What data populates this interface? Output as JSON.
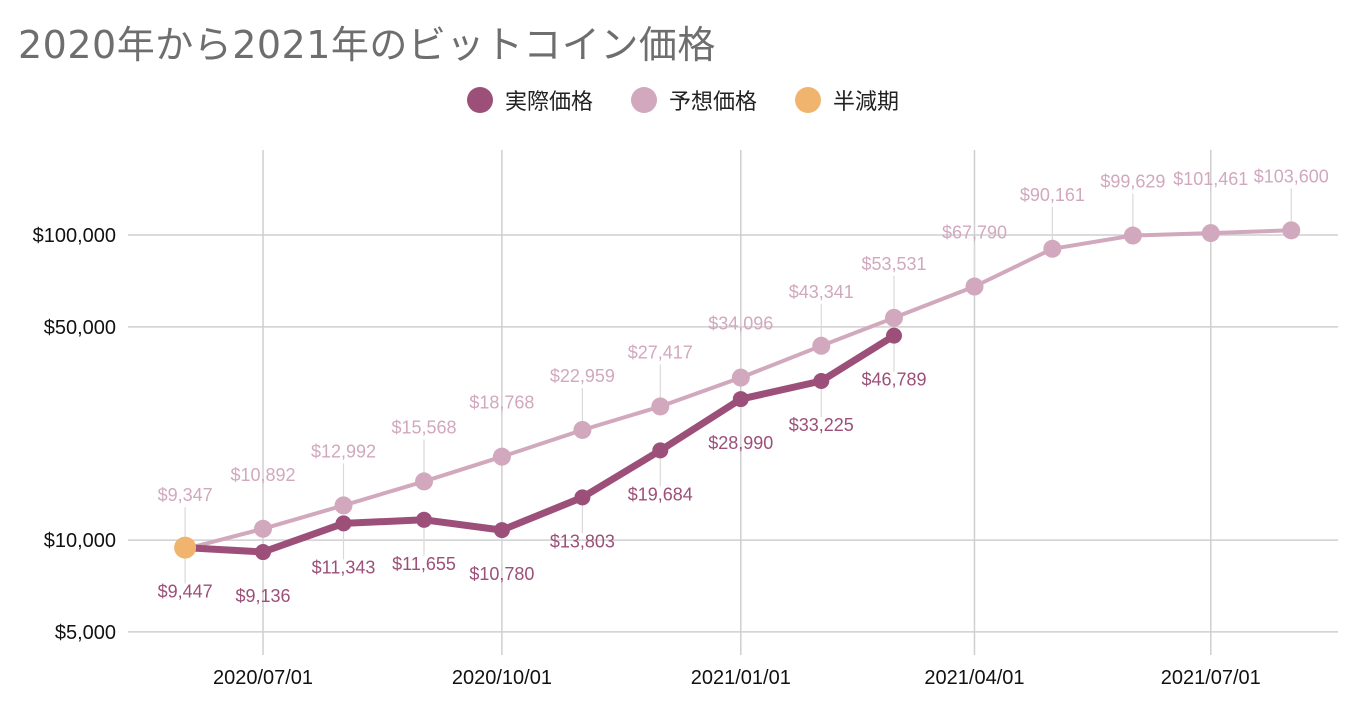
{
  "chart_data": {
    "type": "line",
    "title": "2020年から2021年のビットコイン価格",
    "y_scale": "log",
    "ylim": [
      4200,
      190000
    ],
    "xlim": [
      "2020-05-10",
      "2021-08-19"
    ],
    "y_ticks": [
      5000,
      10000,
      50000,
      100000
    ],
    "y_tick_labels": [
      "$5,000",
      "$10,000",
      "$50,000",
      "$100,000"
    ],
    "x_ticks": [
      "2020-07-01",
      "2020-10-01",
      "2021-01-01",
      "2021-04-01",
      "2021-07-01"
    ],
    "x_tick_labels": [
      "2020/07/01",
      "2020/10/01",
      "2021/01/01",
      "2021/04/01",
      "2021/07/01"
    ],
    "grid": true,
    "legend_position": "top-center",
    "series": [
      {
        "name": "実際価格",
        "color": "#9c4f78",
        "label_position": "below",
        "points": [
          {
            "x": "2020-06-01",
            "y": 9447,
            "label": "$9,447"
          },
          {
            "x": "2020-07-01",
            "y": 9136,
            "label": "$9,136"
          },
          {
            "x": "2020-08-01",
            "y": 11343,
            "label": "$11,343"
          },
          {
            "x": "2020-09-01",
            "y": 11655,
            "label": "$11,655"
          },
          {
            "x": "2020-10-01",
            "y": 10780,
            "label": "$10,780"
          },
          {
            "x": "2020-11-01",
            "y": 13803,
            "label": "$13,803"
          },
          {
            "x": "2020-12-01",
            "y": 19684,
            "label": "$19,684"
          },
          {
            "x": "2021-01-01",
            "y": 28990,
            "label": "$28,990"
          },
          {
            "x": "2021-02-01",
            "y": 33225,
            "label": "$33,225"
          },
          {
            "x": "2021-03-01",
            "y": 46789,
            "label": "$46,789"
          }
        ]
      },
      {
        "name": "予想価格",
        "color": "#d1a8bd",
        "label_position": "above",
        "points": [
          {
            "x": "2020-06-01",
            "y": 9347,
            "label": "$9,347"
          },
          {
            "x": "2020-07-01",
            "y": 10892,
            "label": "$10,892"
          },
          {
            "x": "2020-08-01",
            "y": 12992,
            "label": "$12,992"
          },
          {
            "x": "2020-09-01",
            "y": 15568,
            "label": "$15,568"
          },
          {
            "x": "2020-10-01",
            "y": 18768,
            "label": "$18,768"
          },
          {
            "x": "2020-11-01",
            "y": 22959,
            "label": "$22,959"
          },
          {
            "x": "2020-12-01",
            "y": 27417,
            "label": "$27,417"
          },
          {
            "x": "2021-01-01",
            "y": 34096,
            "label": "$34,096"
          },
          {
            "x": "2021-02-01",
            "y": 43341,
            "label": "$43,341"
          },
          {
            "x": "2021-03-01",
            "y": 53531,
            "label": "$53,531"
          },
          {
            "x": "2021-04-01",
            "y": 67790,
            "label": "$67,790"
          },
          {
            "x": "2021-05-01",
            "y": 90161,
            "label": "$90,161"
          },
          {
            "x": "2021-06-01",
            "y": 99629,
            "label": "$99,629"
          },
          {
            "x": "2021-07-01",
            "y": 101461,
            "label": "$101,461"
          },
          {
            "x": "2021-08-01",
            "y": 103600,
            "label": "$103,600"
          }
        ]
      },
      {
        "name": "半減期",
        "color": "#f0b46e",
        "points": [
          {
            "x": "2020-06-01",
            "y": 9447
          }
        ]
      }
    ]
  }
}
